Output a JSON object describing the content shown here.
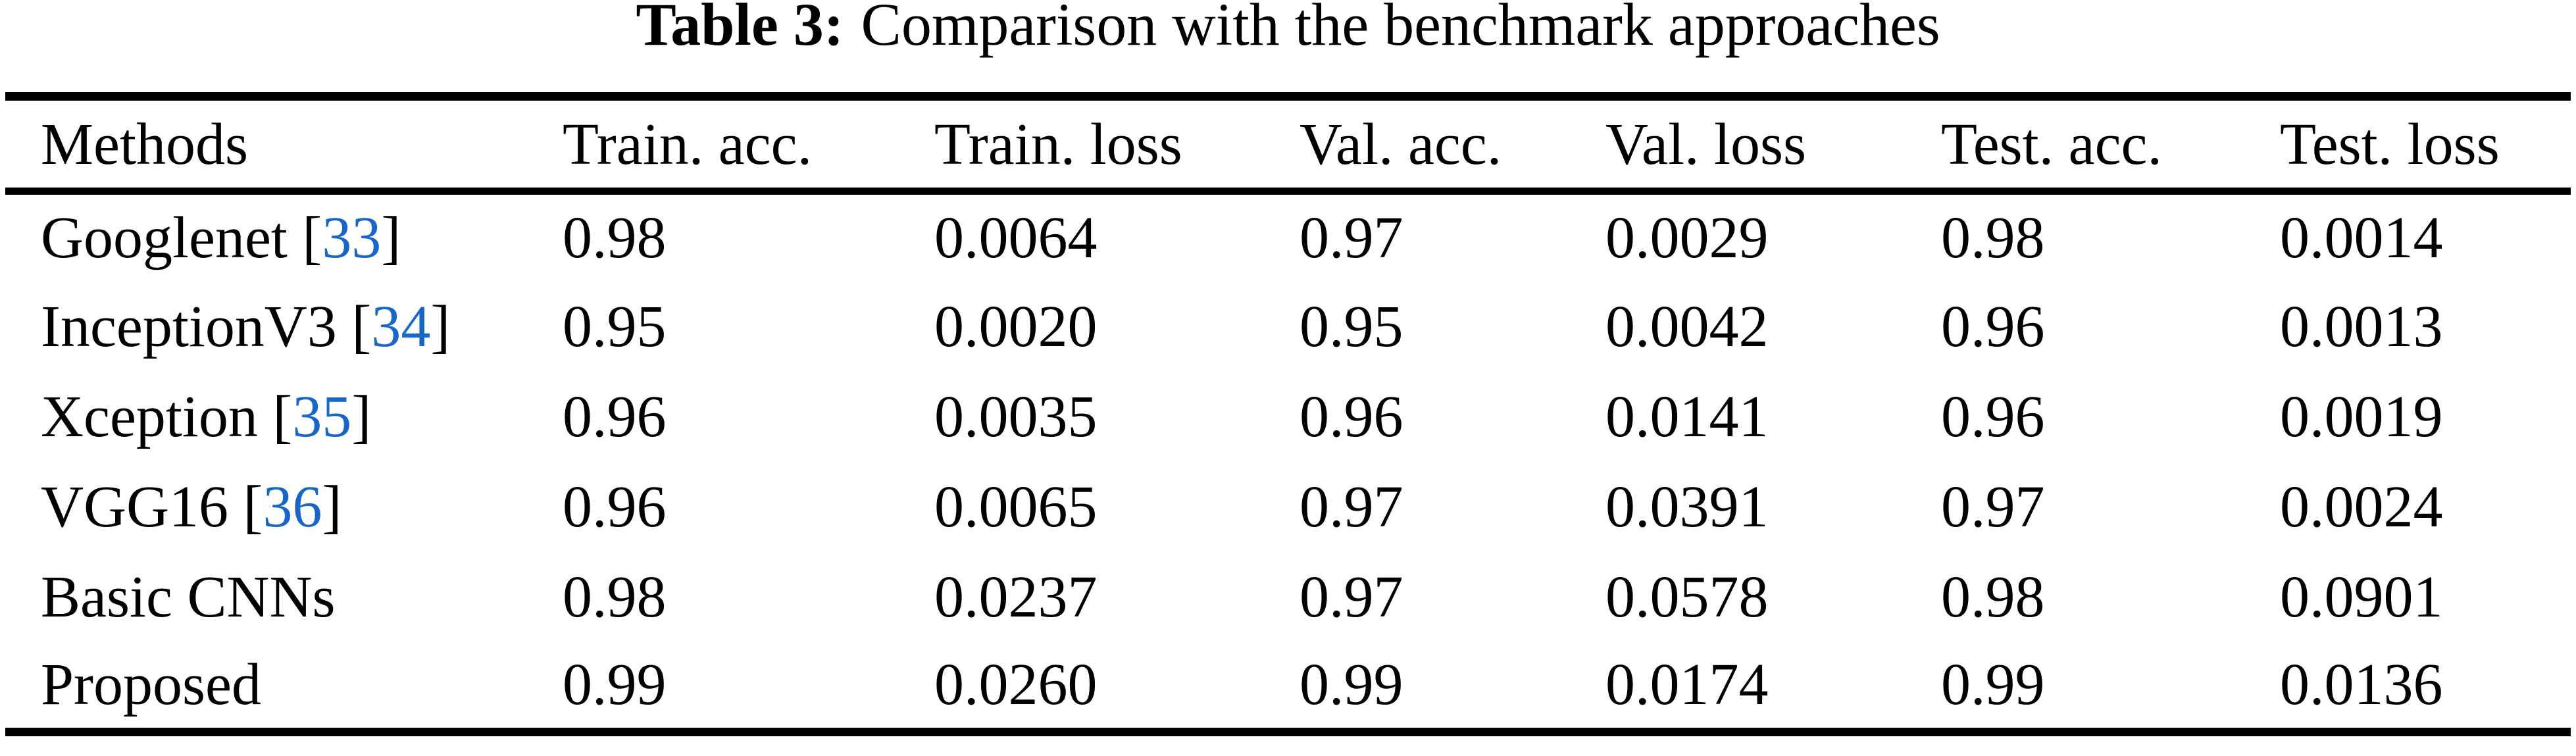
{
  "caption": {
    "tag": "Table 3:",
    "text": "Comparison with the benchmark approaches"
  },
  "table": {
    "columns": [
      "Methods",
      "Train. acc.",
      "Train. loss",
      "Val. acc.",
      "Val. loss",
      "Test. acc.",
      "Test. loss"
    ],
    "rows": [
      {
        "name": "Googlenet",
        "ref_pre": " [",
        "ref": "33",
        "ref_post": "]",
        "values": [
          "0.98",
          "0.0064",
          "0.97",
          "0.0029",
          "0.98",
          "0.0014"
        ]
      },
      {
        "name": "InceptionV3",
        "ref_pre": " [",
        "ref": "34",
        "ref_post": "]",
        "values": [
          "0.95",
          "0.0020",
          "0.95",
          "0.0042",
          "0.96",
          "0.0013"
        ]
      },
      {
        "name": "Xception",
        "ref_pre": " [",
        "ref": "35",
        "ref_post": "]",
        "values": [
          "0.96",
          "0.0035",
          "0.96",
          "0.0141",
          "0.96",
          "0.0019"
        ]
      },
      {
        "name": "VGG16",
        "ref_pre": " [",
        "ref": "36",
        "ref_post": "]",
        "values": [
          "0.96",
          "0.0065",
          "0.97",
          "0.0391",
          "0.97",
          "0.0024"
        ]
      },
      {
        "name": "Basic CNNs",
        "values": [
          "0.98",
          "0.0237",
          "0.97",
          "0.0578",
          "0.98",
          "0.0901"
        ]
      },
      {
        "name": "Proposed",
        "values": [
          "0.99",
          "0.0260",
          "0.99",
          "0.0174",
          "0.99",
          "0.0136"
        ]
      }
    ],
    "colors": {
      "text": "#000000",
      "rule": "#000000",
      "background": "#FFFFFF",
      "citation_link_blue": "#1766C8"
    }
  }
}
